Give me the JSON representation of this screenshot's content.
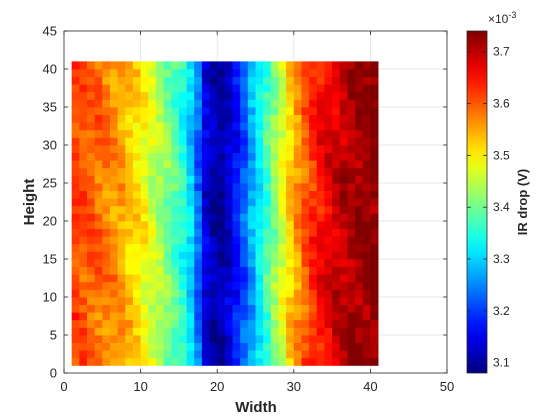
{
  "chart_data": {
    "type": "heatmap",
    "title": "",
    "xlabel": "Width",
    "ylabel": "Height",
    "xlim": [
      0,
      50
    ],
    "ylim": [
      0,
      45
    ],
    "xticks": [
      0,
      10,
      20,
      30,
      40,
      50
    ],
    "yticks": [
      0,
      5,
      10,
      15,
      20,
      25,
      30,
      35,
      40,
      45
    ],
    "grid": true,
    "colormap": "jet",
    "data_extent": {
      "x": [
        1,
        41
      ],
      "y": [
        1,
        41
      ]
    },
    "columns": 40,
    "rows": 40,
    "column_values": [
      3.612,
      3.606,
      3.598,
      3.59,
      3.58,
      3.568,
      3.552,
      3.534,
      3.513,
      3.49,
      3.465,
      3.438,
      3.41,
      3.381,
      3.35,
      3.3,
      3.23,
      3.14,
      3.11,
      3.1,
      3.13,
      3.17,
      3.22,
      3.27,
      3.32,
      3.37,
      3.42,
      3.47,
      3.52,
      3.56,
      3.6,
      3.63,
      3.655,
      3.672,
      3.69,
      3.7,
      3.712,
      3.72,
      3.728,
      3.735
    ],
    "colorbar": {
      "label": "IR drop (V)",
      "exponent": "×10",
      "exponent_power": "-3",
      "range": [
        3.08,
        3.74
      ],
      "ticks": [
        3.1,
        3.2,
        3.3,
        3.4,
        3.5,
        3.6,
        3.7
      ],
      "tick_labels": [
        "3.1",
        "3.2",
        "3.3",
        "3.4",
        "3.5",
        "3.6",
        "3.7"
      ]
    }
  }
}
